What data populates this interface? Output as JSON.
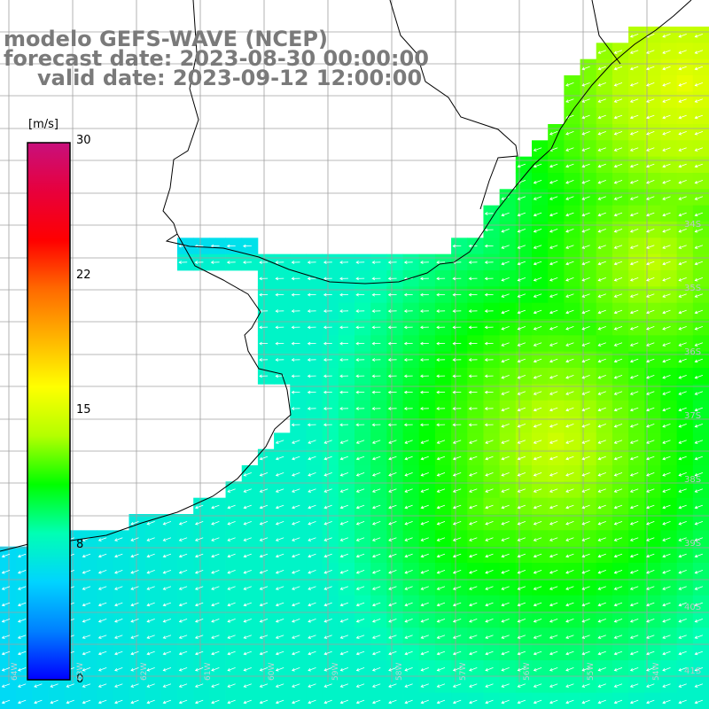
{
  "title": {
    "model": "modelo GEFS-WAVE (NCEP)",
    "forecast": "forecast date: 2023-08-30 00:00:00",
    "valid": "valid date: 2023-09-12 12:00:00"
  },
  "colorbar": {
    "unit": "[m/s]",
    "min": 0,
    "max": 30,
    "ticks": [
      "30",
      "22",
      "15",
      "8",
      "0"
    ],
    "colors": [
      "#0000ff",
      "#0080ff",
      "#00d4ff",
      "#00ffb4",
      "#00ff00",
      "#b4ff00",
      "#ffff00",
      "#ffb400",
      "#ff6a00",
      "#ff0000",
      "#e8003c",
      "#c8107c"
    ]
  },
  "map": {
    "land_color": "#ffffff",
    "coast_color": "#000000",
    "grid_color": "#a0a0a0",
    "arrow_color": "#ffffff",
    "lat_labels": [
      "34S",
      "35S",
      "36S",
      "37S",
      "38S",
      "39S",
      "40S",
      "41S"
    ],
    "lon_labels": [
      "64W",
      "63W",
      "62W",
      "61W",
      "60W",
      "59W",
      "58W",
      "57W",
      "56W",
      "55W",
      "54W"
    ],
    "wind_field": {
      "grid_cols": 44,
      "grid_rows": 42,
      "hotspots": [
        {
          "lon_idx": 34,
          "lat_idx": 25,
          "speed": 14.5
        },
        {
          "lon_idx": 40,
          "lat_idx": 14,
          "speed": 14.0
        },
        {
          "lon_idx": 42,
          "lat_idx": 3,
          "speed": 15.5
        },
        {
          "lon_idx": 30,
          "lat_idx": 29,
          "speed": 12.5
        }
      ],
      "base_speed": 7.5
    }
  }
}
